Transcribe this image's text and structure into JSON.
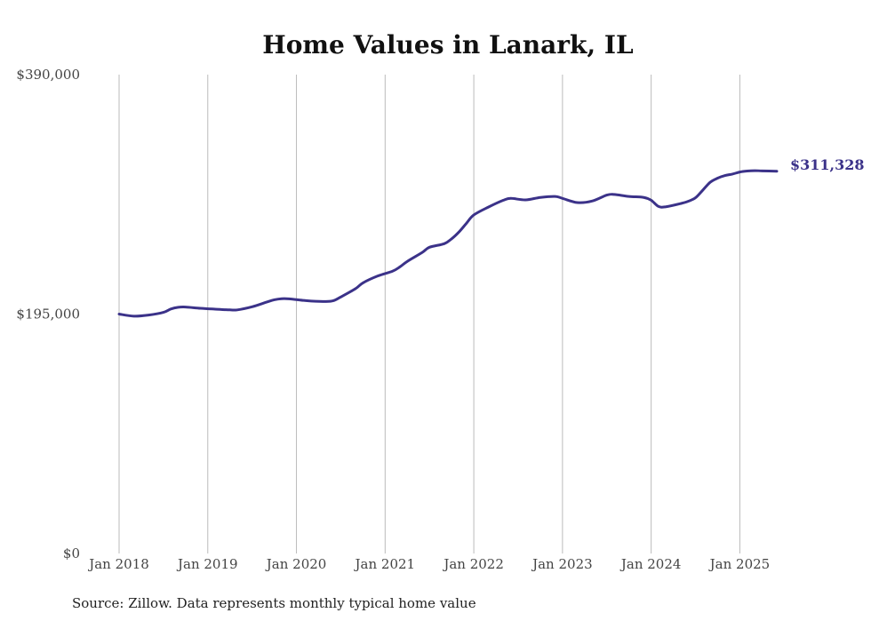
{
  "chart_data": {
    "type": "line",
    "title": "Home Values in Lanark, IL",
    "subtitle": "",
    "xlabel": "",
    "ylabel": "",
    "ylim": [
      0,
      390000
    ],
    "y_ticks": [
      0,
      195000,
      390000
    ],
    "y_tick_labels": [
      "$0",
      "$195,000",
      "$390,000"
    ],
    "x_tick_labels": [
      "Jan 2018",
      "Jan 2019",
      "Jan 2020",
      "Jan 2021",
      "Jan 2022",
      "Jan 2023",
      "Jan 2024",
      "Jan 2025"
    ],
    "x_tick_dates": [
      "2018-01",
      "2019-01",
      "2020-01",
      "2021-01",
      "2022-01",
      "2023-01",
      "2024-01",
      "2025-01"
    ],
    "xlim": [
      "2018-01",
      "2025-06"
    ],
    "grid": "vertical",
    "legend": "none",
    "line_color": "#3b3289",
    "series": [
      {
        "name": "",
        "points": [
          [
            "2018-01",
            195000
          ],
          [
            "2018-03",
            193300
          ],
          [
            "2018-05",
            194200
          ],
          [
            "2018-07",
            196400
          ],
          [
            "2018-08",
            199100
          ],
          [
            "2018-09",
            200500
          ],
          [
            "2018-10",
            200700
          ],
          [
            "2018-12",
            199700
          ],
          [
            "2019-02",
            199000
          ],
          [
            "2019-04",
            198400
          ],
          [
            "2019-05",
            198400
          ],
          [
            "2019-07",
            200900
          ],
          [
            "2019-09",
            204800
          ],
          [
            "2019-10",
            206600
          ],
          [
            "2019-11",
            207500
          ],
          [
            "2019-12",
            207400
          ],
          [
            "2020-02",
            206100
          ],
          [
            "2020-03",
            205600
          ],
          [
            "2020-05",
            205200
          ],
          [
            "2020-06",
            205900
          ],
          [
            "2020-07",
            208900
          ],
          [
            "2020-09",
            215700
          ],
          [
            "2020-10",
            220400
          ],
          [
            "2020-12",
            226000
          ],
          [
            "2021-02",
            229900
          ],
          [
            "2021-03",
            233400
          ],
          [
            "2021-04",
            237900
          ],
          [
            "2021-06",
            245100
          ],
          [
            "2021-07",
            249400
          ],
          [
            "2021-09",
            252300
          ],
          [
            "2021-10",
            256300
          ],
          [
            "2021-11",
            261900
          ],
          [
            "2021-12",
            268900
          ],
          [
            "2022-01",
            275700
          ],
          [
            "2022-03",
            282200
          ],
          [
            "2022-05",
            287700
          ],
          [
            "2022-06",
            289200
          ],
          [
            "2022-08",
            288000
          ],
          [
            "2022-10",
            290000
          ],
          [
            "2022-12",
            290800
          ],
          [
            "2023-01",
            289200
          ],
          [
            "2023-03",
            285800
          ],
          [
            "2023-05",
            287000
          ],
          [
            "2023-07",
            291900
          ],
          [
            "2023-08",
            292400
          ],
          [
            "2023-10",
            290800
          ],
          [
            "2023-12",
            290000
          ],
          [
            "2024-01",
            287700
          ],
          [
            "2024-02",
            282600
          ],
          [
            "2024-03",
            282400
          ],
          [
            "2024-05",
            285000
          ],
          [
            "2024-06",
            286800
          ],
          [
            "2024-07",
            289700
          ],
          [
            "2024-08",
            296000
          ],
          [
            "2024-09",
            302400
          ],
          [
            "2024-10",
            305700
          ],
          [
            "2024-11",
            307800
          ],
          [
            "2024-12",
            309000
          ],
          [
            "2025-01",
            310700
          ],
          [
            "2025-02",
            311500
          ],
          [
            "2025-03",
            311800
          ],
          [
            "2025-04",
            311600
          ],
          [
            "2025-06",
            311328
          ]
        ]
      }
    ],
    "end_label": "$311,328",
    "source_note": "Source: Zillow. Data represents monthly typical home value"
  }
}
